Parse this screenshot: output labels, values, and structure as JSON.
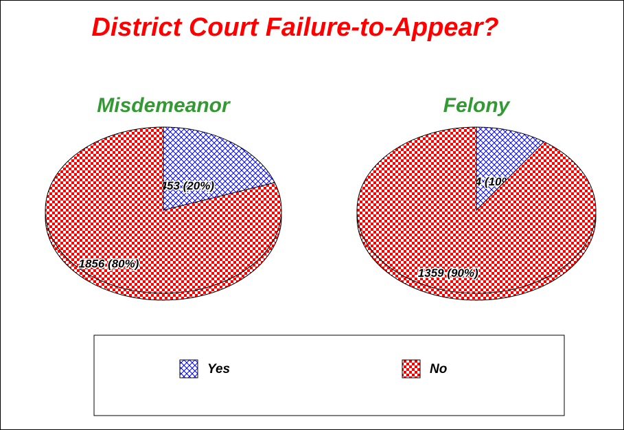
{
  "title": "District Court Failure-to-Appear?",
  "chart_data": [
    {
      "type": "pie",
      "title": "Misdemeanor",
      "categories": [
        "Yes",
        "No"
      ],
      "values": [
        453,
        1856
      ],
      "value_labels": [
        "453 (20%)",
        "1856 (80%)"
      ],
      "colors": [
        "#0000ff",
        "#ff0000"
      ]
    },
    {
      "type": "pie",
      "title": "Felony",
      "categories": [
        "Yes",
        "No"
      ],
      "values": [
        144,
        1359
      ],
      "value_labels": [
        "144 (10%)",
        "1359 (90%)"
      ],
      "colors": [
        "#0000ff",
        "#ff0000"
      ]
    }
  ]
}
